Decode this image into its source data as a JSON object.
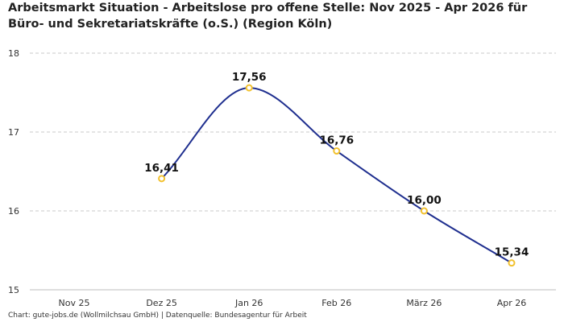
{
  "title": "Arbeitsmarkt Situation - Arbeitslose pro offene Stelle: Nov 2025 - Apr 2026 für Büro- und Sekretariatskräfte (o.S.) (Region Köln)",
  "source": "Chart: gute-jobs.de (Wollmilchsau GmbH) | Datenquelle: Bundesagentur für Arbeit",
  "colors": {
    "line": "#1f2f8f",
    "marker": "#f2c12e"
  },
  "chart_data": {
    "type": "line",
    "categories": [
      "Nov 25",
      "Dez 25",
      "Jan 26",
      "Feb 26",
      "März 26",
      "Apr 26"
    ],
    "values": [
      null,
      16.41,
      17.56,
      16.76,
      16.0,
      15.34
    ],
    "value_labels": [
      null,
      "16,41",
      "17,56",
      "16,76",
      "16,00",
      "15,34"
    ],
    "y_ticks": [
      15,
      16,
      17,
      18
    ],
    "ylim": [
      15,
      18
    ],
    "grid": true,
    "xlabel": "",
    "ylabel": ""
  }
}
